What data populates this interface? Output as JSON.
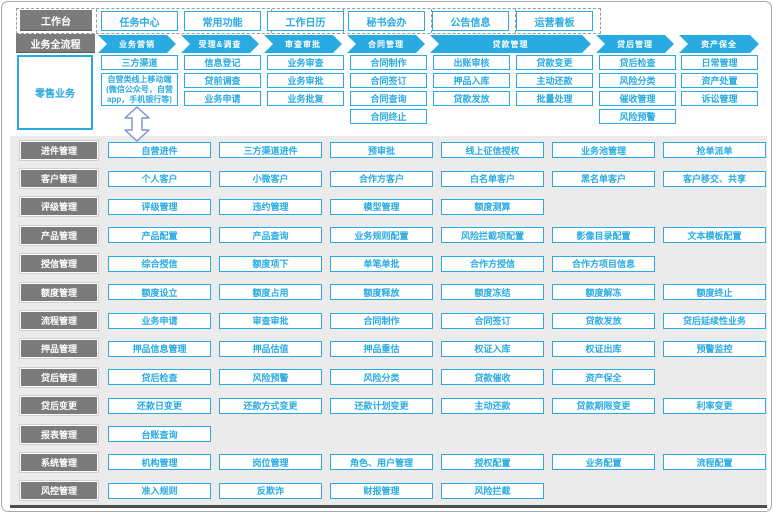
{
  "colors": {
    "accent": "#29abe2",
    "label_gray": "#7b7b7b",
    "panel_bg": "#ebebeb",
    "connector": "#7e96d6",
    "panel_edge": "#4d4d4d"
  },
  "workbench": {
    "label": "工作台",
    "items": [
      "任务中心",
      "常用功能",
      "工作日历",
      "秘书会办",
      "公告信息",
      "运营看板"
    ]
  },
  "process_flow": {
    "label": "业务全流程",
    "stages": [
      "业务营销",
      "受理&调查",
      "审查审批",
      "合同管理",
      "贷款管理",
      "贷后管理",
      "资产保全"
    ]
  },
  "retail": {
    "label": "零售业务",
    "columns": [
      [
        {
          "text": "三方渠道"
        },
        {
          "text": "自营类线上移动端(微信公众号，自营app，手机银行等)",
          "rows": 2
        }
      ],
      [
        {
          "text": "信息登记"
        },
        {
          "text": "贷前调查"
        },
        {
          "text": "业务申请"
        }
      ],
      [
        {
          "text": "业务审查"
        },
        {
          "text": "业务审批"
        },
        {
          "text": "业务批复"
        }
      ],
      [
        {
          "text": "合同制作"
        },
        {
          "text": "合同签订"
        },
        {
          "text": "合同查询"
        },
        {
          "text": "合同终止"
        }
      ],
      [
        {
          "text": "出账审核"
        },
        {
          "text": "押品入库"
        },
        {
          "text": "贷款发放"
        }
      ],
      [
        {
          "text": "贷款变更"
        },
        {
          "text": "主动还款"
        },
        {
          "text": "批量处理"
        }
      ],
      [
        {
          "text": "贷后检查"
        },
        {
          "text": "风险分类"
        },
        {
          "text": "催收管理"
        },
        {
          "text": "风险预警"
        }
      ],
      [
        {
          "text": "日常管理"
        },
        {
          "text": "资产处置"
        },
        {
          "text": "诉讼管理"
        }
      ]
    ]
  },
  "modules": [
    {
      "label": "进件管理",
      "items": [
        "自营进件",
        "三方渠道进件",
        "预审批",
        "线上征信授权",
        "业务池管理",
        "抢单派单"
      ]
    },
    {
      "label": "客户管理",
      "items": [
        "个人客户",
        "小微客户",
        "合作方客户",
        "白名单客户",
        "黑名单客户",
        "客户移交、共享"
      ]
    },
    {
      "label": "评级管理",
      "items": [
        "评级管理",
        "违约管理",
        "模型管理",
        "额度测算"
      ]
    },
    {
      "label": "产品管理",
      "items": [
        "产品配置",
        "产品查询",
        "业务规则配置",
        "风险拦截项配置",
        "影像目录配置",
        "文本模板配置"
      ]
    },
    {
      "label": "授信管理",
      "items": [
        "综合授信",
        "额度项下",
        "单笔单批",
        "合作方授信",
        "合作方项目信息"
      ]
    },
    {
      "label": "额度管理",
      "items": [
        "额度设立",
        "额度占用",
        "额度释放",
        "额度冻结",
        "额度解冻",
        "额度终止"
      ]
    },
    {
      "label": "流程管理",
      "items": [
        "业务申请",
        "审查审批",
        "合同制作",
        "合同签订",
        "贷款发放",
        "贷后延续性业务"
      ]
    },
    {
      "label": "押品管理",
      "items": [
        "押品信息管理",
        "押品估值",
        "押品重估",
        "权证入库",
        "权证出库",
        "预警监控"
      ]
    },
    {
      "label": "贷后管理",
      "items": [
        "贷后检查",
        "风险预警",
        "风险分类",
        "贷款催收",
        "资产保全"
      ]
    },
    {
      "label": "贷后变更",
      "items": [
        "还款日变更",
        "还款方式变更",
        "还款计划变更",
        "主动还款",
        "贷款期限变更",
        "利率变更"
      ]
    },
    {
      "label": "报表管理",
      "items": [
        "台账查询"
      ]
    },
    {
      "label": "系统管理",
      "items": [
        "机构管理",
        "岗位管理",
        "角色、用户管理",
        "授权配置",
        "业务配置",
        "流程配置"
      ]
    },
    {
      "label": "风控管理",
      "items": [
        "准入规则",
        "反欺诈",
        "财报管理",
        "风险拦截"
      ]
    }
  ]
}
